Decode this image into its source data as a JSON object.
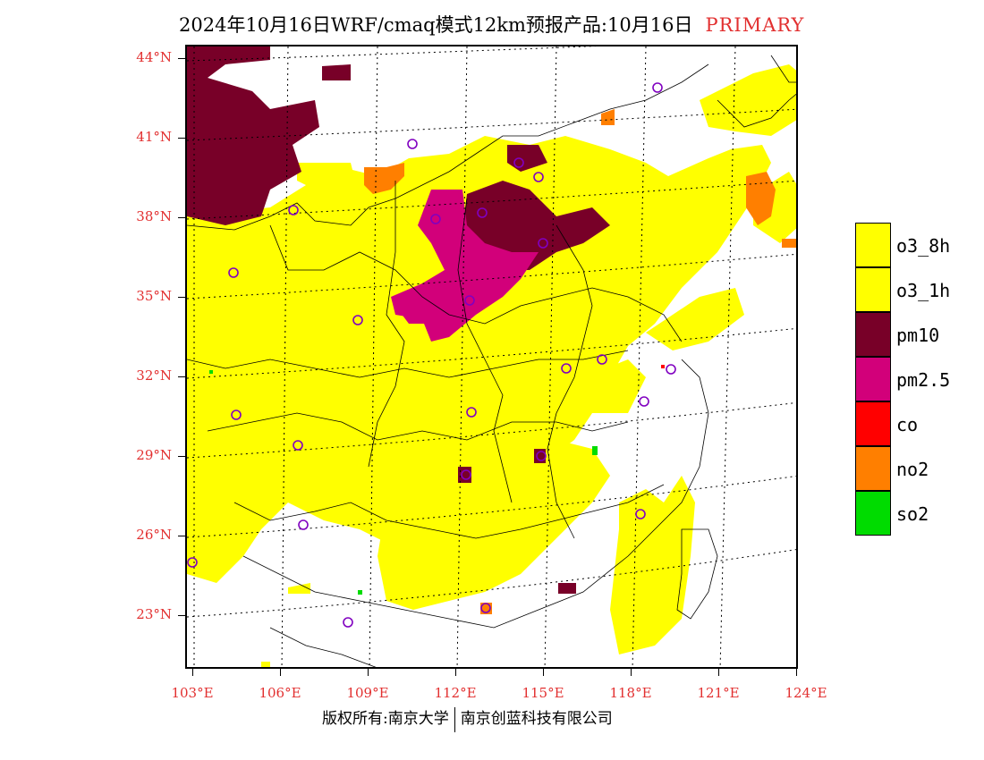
{
  "title": {
    "text": "2024年10月16日WRF/cmaq模式12km预报产品:10月16日",
    "tag": "PRIMARY"
  },
  "axes": {
    "lat_labels": [
      "44°N",
      "41°N",
      "38°N",
      "35°N",
      "32°N",
      "29°N",
      "26°N",
      "23°N"
    ],
    "lon_labels": [
      "103°E",
      "106°E",
      "109°E",
      "112°E",
      "115°E",
      "118°E",
      "121°E",
      "124°E"
    ]
  },
  "legend": [
    {
      "label": "o3_8h",
      "color": "#ffff00"
    },
    {
      "label": "o3_1h",
      "color": "#ffff00"
    },
    {
      "label": "pm10",
      "color": "#780028"
    },
    {
      "label": "pm2.5",
      "color": "#d2007a"
    },
    {
      "label": "co",
      "color": "#ff0000"
    },
    {
      "label": "no2",
      "color": "#ff7f00"
    },
    {
      "label": "so2",
      "color": "#00dc00"
    }
  ],
  "footer": {
    "left": "版权所有:南京大学",
    "right": "南京创蓝科技有限公司"
  }
}
